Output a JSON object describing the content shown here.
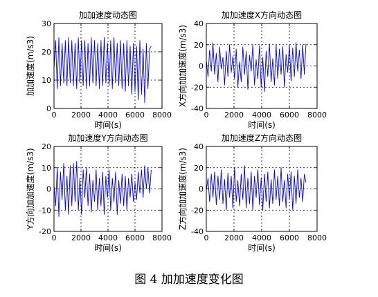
{
  "colors": {
    "series": "#0000ff",
    "axes": "#000000",
    "background": "#ffffff"
  },
  "caption": "图 4  加加速度变化图",
  "chart_data": [
    {
      "type": "line",
      "title": "加加速度动态图",
      "xlabel": "时间(s)",
      "ylabel": "加加速度(m/s3)",
      "xlim": [
        0,
        8000
      ],
      "ylim": [
        0,
        30
      ],
      "xticks": [
        0,
        2000,
        4000,
        6000,
        8000
      ],
      "yticks": [
        0,
        10,
        20,
        30
      ],
      "grid": true,
      "series": [
        {
          "x": [
            0,
            120,
            240,
            360,
            480,
            600,
            720,
            840,
            960,
            1080,
            1200,
            1320,
            1440,
            1560,
            1680,
            1800,
            1920,
            2040,
            2160,
            2280,
            2400,
            2520,
            2640,
            2760,
            2880,
            3000,
            3120,
            3240,
            3360,
            3480,
            3600,
            3720,
            3840,
            3960,
            4080,
            4200,
            4320,
            4440,
            4560,
            4680,
            4800,
            4920,
            5040,
            5160,
            5280,
            5400,
            5520,
            5640,
            5760,
            5880,
            6000,
            6120,
            6240,
            6360,
            6480,
            6600,
            6720,
            6840,
            6960,
            7080,
            7200
          ],
          "y": [
            14,
            24,
            7,
            25,
            8,
            23,
            9,
            24,
            8,
            25,
            9,
            24,
            8,
            23,
            7,
            25,
            9,
            24,
            8,
            24,
            7,
            23,
            8,
            25,
            9,
            24,
            8,
            23,
            7,
            24,
            8,
            25,
            9,
            23,
            8,
            24,
            7,
            25,
            9,
            23,
            8,
            24,
            7,
            23,
            6,
            24,
            8,
            22,
            5,
            23,
            6,
            22,
            3,
            24,
            5,
            21,
            2,
            23,
            7,
            21,
            22
          ]
        }
      ]
    },
    {
      "type": "line",
      "title": "加加速度X方向动态图",
      "xlabel": "时间(s)",
      "ylabel": "X方向加加速度(m/s3)",
      "xlim": [
        0,
        8000
      ],
      "ylim": [
        -40,
        40
      ],
      "xticks": [
        0,
        2000,
        4000,
        6000,
        8000
      ],
      "yticks": [
        -40,
        -20,
        0,
        20,
        40
      ],
      "grid": true,
      "series": [
        {
          "x": [
            0,
            120,
            240,
            360,
            480,
            600,
            720,
            840,
            960,
            1080,
            1200,
            1320,
            1440,
            1560,
            1680,
            1800,
            1920,
            2040,
            2160,
            2280,
            2400,
            2520,
            2640,
            2760,
            2880,
            3000,
            3120,
            3240,
            3360,
            3480,
            3600,
            3720,
            3840,
            3960,
            4080,
            4200,
            4320,
            4440,
            4560,
            4680,
            4800,
            4920,
            5040,
            5160,
            5280,
            5400,
            5520,
            5640,
            5760,
            5880,
            6000,
            6120,
            6240,
            6360,
            6480,
            6600,
            6720,
            6840,
            6960,
            7080,
            7200
          ],
          "y": [
            5,
            -10,
            15,
            -5,
            22,
            -8,
            12,
            -15,
            18,
            -3,
            8,
            -18,
            14,
            -10,
            20,
            -6,
            9,
            -12,
            16,
            -20,
            4,
            -15,
            18,
            -8,
            14,
            -22,
            10,
            -5,
            20,
            -18,
            6,
            -12,
            19,
            -20,
            8,
            -24,
            14,
            -10,
            21,
            -15,
            7,
            -18,
            20,
            -12,
            16,
            -8,
            18,
            -20,
            11,
            -6,
            20,
            -14,
            17,
            -10,
            22,
            -5,
            15,
            -12,
            20,
            -8,
            21
          ]
        }
      ]
    },
    {
      "type": "line",
      "title": "加加速度Y方向动态图",
      "xlabel": "时间(s)",
      "ylabel": "Y方向加加速度(m/s3)",
      "xlim": [
        0,
        8000
      ],
      "ylim": [
        -20,
        20
      ],
      "xticks": [
        0,
        2000,
        4000,
        6000,
        8000
      ],
      "yticks": [
        -20,
        -10,
        0,
        10,
        20
      ],
      "grid": true,
      "series": [
        {
          "x": [
            0,
            120,
            240,
            360,
            480,
            600,
            720,
            840,
            960,
            1080,
            1200,
            1320,
            1440,
            1560,
            1680,
            1800,
            1920,
            2040,
            2160,
            2280,
            2400,
            2520,
            2640,
            2760,
            2880,
            3000,
            3120,
            3240,
            3360,
            3480,
            3600,
            3720,
            3840,
            3960,
            4080,
            4200,
            4320,
            4440,
            4560,
            4680,
            4800,
            4920,
            5040,
            5160,
            5280,
            5400,
            5520,
            5640,
            5760,
            5880,
            6000,
            6120,
            6240,
            6360,
            6480,
            6600,
            6720,
            6840,
            6960,
            7080,
            7200
          ],
          "y": [
            2,
            -8,
            10,
            -13,
            8,
            -5,
            12,
            -10,
            6,
            -12,
            11,
            -8,
            12,
            -6,
            13,
            -10,
            5,
            -12,
            9,
            -4,
            10,
            -8,
            7,
            -11,
            4,
            -6,
            9,
            -10,
            5,
            -8,
            8,
            -12,
            6,
            -4,
            9,
            -10,
            5,
            -6,
            8,
            -12,
            4,
            -7,
            7,
            -8,
            6,
            -10,
            5,
            -4,
            7,
            -6,
            3,
            -5,
            8,
            -2,
            9,
            -4,
            11,
            0,
            10,
            -2,
            9
          ]
        }
      ]
    },
    {
      "type": "line",
      "title": "加加速度Z方向动态图",
      "xlabel": "时间(s)",
      "ylabel": "Z方向加加速度(m/s3)",
      "xlim": [
        0,
        8000
      ],
      "ylim": [
        -40,
        40
      ],
      "xticks": [
        0,
        2000,
        4000,
        6000,
        8000
      ],
      "yticks": [
        -40,
        -20,
        0,
        20,
        40
      ],
      "grid": true,
      "series": [
        {
          "x": [
            0,
            120,
            240,
            360,
            480,
            600,
            720,
            840,
            960,
            1080,
            1200,
            1320,
            1440,
            1560,
            1680,
            1800,
            1920,
            2040,
            2160,
            2280,
            2400,
            2520,
            2640,
            2760,
            2880,
            3000,
            3120,
            3240,
            3360,
            3480,
            3600,
            3720,
            3840,
            3960,
            4080,
            4200,
            4320,
            4440,
            4560,
            4680,
            4800,
            4920,
            5040,
            5160,
            5280,
            5400,
            5520,
            5640,
            5760,
            5880,
            6000,
            6120,
            6240,
            6360,
            6480,
            6600,
            6720,
            6840,
            6960,
            7080,
            7200
          ],
          "y": [
            -2,
            10,
            -12,
            14,
            -8,
            16,
            -15,
            12,
            -10,
            18,
            -14,
            9,
            -20,
            15,
            -8,
            12,
            -18,
            20,
            -12,
            8,
            -16,
            14,
            -10,
            22,
            -18,
            10,
            -14,
            16,
            -20,
            12,
            -8,
            18,
            -15,
            10,
            -20,
            14,
            -12,
            16,
            -18,
            9,
            -14,
            18,
            -10,
            12,
            -16,
            20,
            -12,
            8,
            -18,
            14,
            -10,
            16,
            -20,
            12,
            -14,
            18,
            -8,
            10,
            -12,
            14,
            6
          ]
        }
      ]
    }
  ]
}
